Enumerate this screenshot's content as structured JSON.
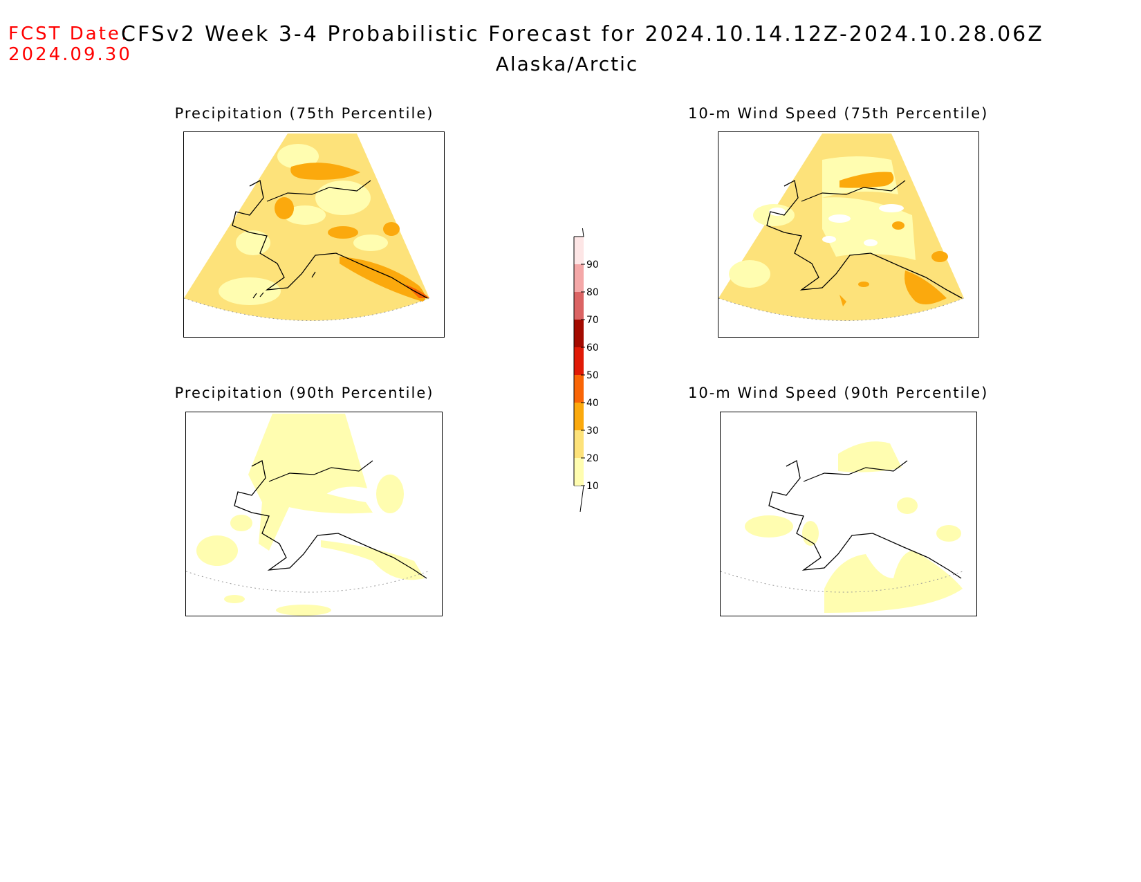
{
  "header": {
    "fcst_label": "FCST Date:",
    "fcst_date": "2024.09.30",
    "title": "CFSv2 Week 3-4 Probabilistic Forecast for 2024.10.14.12Z-2024.10.28.06Z",
    "region": "Alaska/Arctic"
  },
  "panels": [
    {
      "title": "Precipitation (75th Percentile)"
    },
    {
      "title": "10-m Wind Speed (75th Percentile)"
    },
    {
      "title": "Precipitation (90th Percentile)"
    },
    {
      "title": "10-m Wind Speed (90th Percentile)"
    }
  ],
  "colorbar": {
    "levels": [
      "10",
      "20",
      "30",
      "40",
      "50",
      "60",
      "70",
      "80",
      "90"
    ],
    "colors": [
      "#fffdb0",
      "#fde27a",
      "#fba90d",
      "#f96506",
      "#e01a06",
      "#a30a00",
      "#db6464",
      "#f4a8a8",
      "#fde6e6"
    ]
  }
}
